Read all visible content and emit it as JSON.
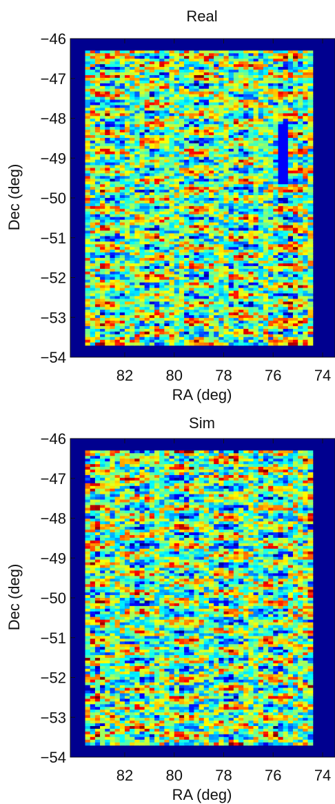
{
  "chart_data": [
    {
      "type": "heatmap",
      "title": "Real",
      "xlabel": "RA (deg)",
      "ylabel": "Dec (deg)",
      "xlim": [
        84.2,
        73.5
      ],
      "ylim": [
        -54,
        -46
      ],
      "x_reversed": true,
      "xticks": [
        82,
        80,
        78,
        76,
        74
      ],
      "yticks": [
        -46,
        -47,
        -48,
        -49,
        -50,
        -51,
        -52,
        -53,
        -54
      ],
      "xtick_labels": [
        "82",
        "80",
        "78",
        "76",
        "74"
      ],
      "ytick_labels": [
        "−46",
        "−47",
        "−48",
        "−49",
        "−50",
        "−51",
        "−52",
        "−53",
        "−54"
      ],
      "survey_footprint": {
        "ra": [
          83.6,
          74.4
        ],
        "dec": [
          -53.7,
          -46.3
        ]
      },
      "colormap": "jet",
      "background_color": "#00008f",
      "grid": false
    },
    {
      "type": "heatmap",
      "title": "Sim",
      "xlabel": "RA (deg)",
      "ylabel": "Dec (deg)",
      "xlim": [
        84.2,
        73.5
      ],
      "ylim": [
        -54,
        -46
      ],
      "x_reversed": true,
      "xticks": [
        82,
        80,
        78,
        76,
        74
      ],
      "yticks": [
        -46,
        -47,
        -48,
        -49,
        -50,
        -51,
        -52,
        -53,
        -54
      ],
      "xtick_labels": [
        "82",
        "80",
        "78",
        "76",
        "74"
      ],
      "ytick_labels": [
        "−46",
        "−47",
        "−48",
        "−49",
        "−50",
        "−51",
        "−52",
        "−53",
        "−54"
      ],
      "survey_footprint": {
        "ra": [
          83.6,
          74.4
        ],
        "dec": [
          -53.7,
          -46.3
        ]
      },
      "colormap": "jet",
      "background_color": "#00008f",
      "grid": false
    }
  ]
}
